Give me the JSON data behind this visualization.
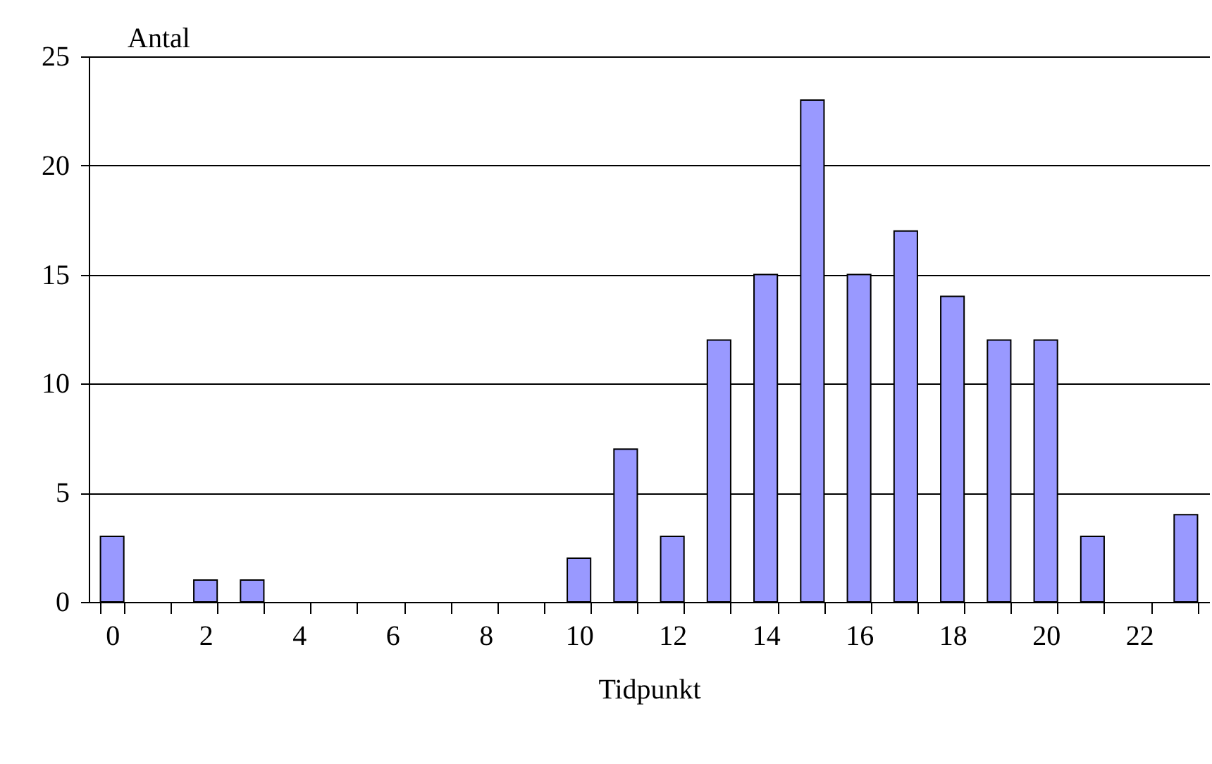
{
  "chart_data": {
    "type": "bar",
    "xlabel": "Tidpunkt",
    "ylabel": "Antal",
    "categories": [
      "0",
      null,
      "2",
      null,
      "4",
      null,
      "6",
      null,
      "8",
      null,
      "10",
      null,
      "12",
      null,
      "14",
      null,
      "16",
      null,
      "18",
      null,
      "20",
      null,
      "22",
      null
    ],
    "values": [
      3,
      0,
      1,
      1,
      0,
      0,
      0,
      0,
      0,
      0,
      2,
      7,
      3,
      12,
      15,
      23,
      15,
      17,
      14,
      12,
      12,
      3,
      0,
      4
    ],
    "color": "#9999ff",
    "ylim": [
      0,
      25
    ],
    "yticks": [
      0,
      5,
      10,
      15,
      20,
      25
    ],
    "grid": "y"
  }
}
